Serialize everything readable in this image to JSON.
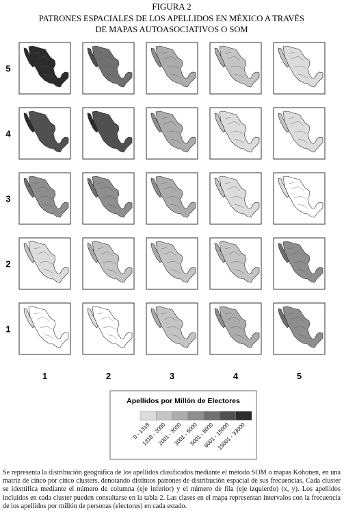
{
  "figure": {
    "label": "FIGURA 2",
    "title_lines": [
      "PATRONES ESPACIALES DE LOS APELLIDOS EN MÉXICO A TRAVÉS",
      "DE MAPAS AUTOASOCIATIVOS O SOM"
    ],
    "row_labels": [
      "5",
      "4",
      "3",
      "2",
      "1"
    ],
    "column_labels": [
      "1",
      "2",
      "3",
      "4",
      "5"
    ],
    "legend": {
      "title": "Apellidos por Millón de Electores",
      "classes": [
        {
          "label": "0 - 1318",
          "color": "#dcdcdc"
        },
        {
          "label": "1318 - 2000",
          "color": "#c4c4c4"
        },
        {
          "label": "2001 - 3000",
          "color": "#acacac"
        },
        {
          "label": "3001 - 5000",
          "color": "#8e8e8e"
        },
        {
          "label": "5001 - 8000",
          "color": "#707070"
        },
        {
          "label": "8001 - 15000",
          "color": "#505050"
        },
        {
          "label": "15001 - 33000",
          "color": "#2c2c2c"
        }
      ]
    },
    "caption": "Se representa la distribución geográfica de los apellidos clasificados mediante el método SOM o mapas Kohonen, en una matriz de cinco por cinco clusters, denotando distintos patrones de distribución espacial de sus frecuencias. Cada cluster se identifica mediante el número de columna (eje inferior) y el número de fila (eje izquierdo) (x, y). Los apellidos incluidos en cada cluster pueden consultarse en la  tabla 2. Las clases en el mapa representan intervalos con la frecuencia de los apellidos por millón de personas (electores) en cada estado."
  }
}
